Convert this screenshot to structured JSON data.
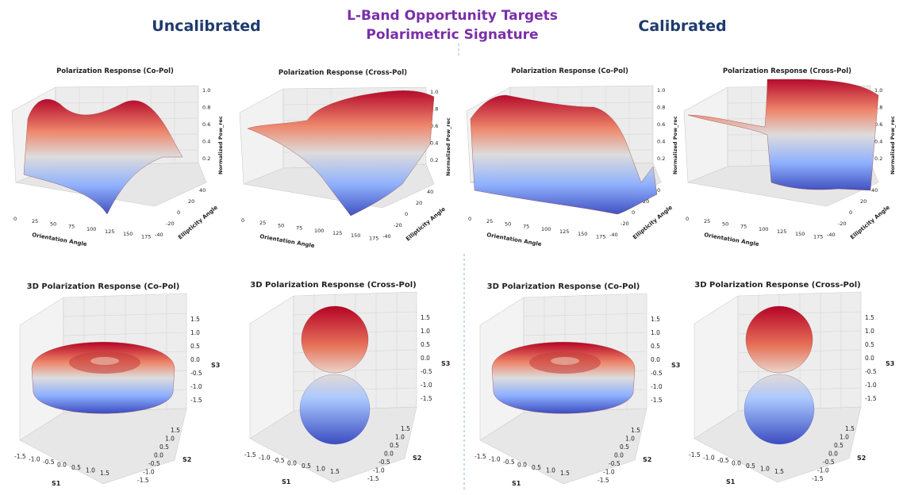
{
  "header": {
    "left": "Uncalibrated",
    "center_line1": "L-Band Opportunity Targets",
    "center_line2": "Polarimetric  Signature",
    "right": "Calibrated"
  },
  "colors": {
    "high": "#b40426",
    "mid": "#dddcdc",
    "low": "#3b4cc0",
    "header_blue": "#1f3a6e",
    "header_purple": "#7a2fa8"
  },
  "chart_data": [
    {
      "type": "surface",
      "group": "Uncalibrated",
      "title": "Polarization Response (Co-Pol)",
      "xlabel": "Orientation Angle",
      "ylabel": "Ellipticity Angle",
      "zlabel": "Normalized Pow_rec",
      "x_ticks": [
        "0",
        "25",
        "50",
        "75",
        "100",
        "125",
        "150",
        "175"
      ],
      "y_ticks": [
        "-40",
        "-20",
        "0",
        "20",
        "40"
      ],
      "z_ticks": [
        "0.2",
        "0.4",
        "0.6",
        "0.8",
        "1.0"
      ],
      "xlim": [
        0,
        180
      ],
      "ylim": [
        -45,
        45
      ],
      "zlim": [
        0,
        1
      ],
      "colormap": "coolwarm"
    },
    {
      "type": "surface",
      "group": "Uncalibrated",
      "title": "Polarization Response (Cross-Pol)",
      "xlabel": "Orientation Angle",
      "ylabel": "Ellipticity Angle",
      "zlabel": "Normalized Pow_rec",
      "x_ticks": [
        "0",
        "25",
        "50",
        "75",
        "100",
        "125",
        "150",
        "175"
      ],
      "y_ticks": [
        "-40",
        "-20",
        "0",
        "20",
        "40"
      ],
      "z_ticks": [
        "0.2",
        "0.4",
        "0.6",
        "0.8",
        "1.0"
      ],
      "xlim": [
        0,
        180
      ],
      "ylim": [
        -45,
        45
      ],
      "zlim": [
        0,
        1
      ],
      "colormap": "coolwarm"
    },
    {
      "type": "surface",
      "group": "Calibrated",
      "title": "Polarization Response (Co-Pol)",
      "xlabel": "Orientation Angle",
      "ylabel": "Ellipticity Angle",
      "zlabel": "Normalized Pow_rec",
      "x_ticks": [
        "0",
        "25",
        "50",
        "75",
        "100",
        "125",
        "150",
        "175"
      ],
      "y_ticks": [
        "-40",
        "-20",
        "0",
        "20",
        "40"
      ],
      "z_ticks": [
        "0.2",
        "0.4",
        "0.6",
        "0.8",
        "1.0"
      ],
      "xlim": [
        0,
        180
      ],
      "ylim": [
        -45,
        45
      ],
      "zlim": [
        0,
        1
      ],
      "colormap": "coolwarm"
    },
    {
      "type": "surface",
      "group": "Calibrated",
      "title": "Polarization Response (Cross-Pol)",
      "xlabel": "Orientation Angle",
      "ylabel": "Ellipticity Angle",
      "zlabel": "Normalized Pow_rec",
      "x_ticks": [
        "0",
        "25",
        "50",
        "75",
        "100",
        "125",
        "150",
        "175"
      ],
      "y_ticks": [
        "-40",
        "-20",
        "0",
        "20",
        "40"
      ],
      "z_ticks": [
        "0.2",
        "0.4",
        "0.6",
        "0.8",
        "1.0"
      ],
      "xlim": [
        0,
        180
      ],
      "ylim": [
        -45,
        45
      ],
      "zlim": [
        0,
        1
      ],
      "colormap": "coolwarm"
    },
    {
      "type": "3d-surface",
      "group": "Uncalibrated",
      "title": "3D Polarization Response (Co-Pol)",
      "xlabel": "S1",
      "ylabel": "S2",
      "zlabel": "S3",
      "x_ticks": [
        "-1.5",
        "-1.0",
        "-0.5",
        "0.0",
        "0.5",
        "1.0",
        "1.5"
      ],
      "y_ticks": [
        "-1.5",
        "-1.0",
        "-0.5",
        "0.0",
        "0.5",
        "1.0",
        "1.5"
      ],
      "z_ticks": [
        "-1.5",
        "-1.0",
        "-0.5",
        "0.0",
        "0.5",
        "1.0",
        "1.5"
      ],
      "shape": "torus",
      "colormap": "coolwarm"
    },
    {
      "type": "3d-surface",
      "group": "Uncalibrated",
      "title": "3D Polarization Response (Cross-Pol)",
      "xlabel": "S1",
      "ylabel": "S2",
      "zlabel": "S3",
      "x_ticks": [
        "-1.5",
        "-1.0",
        "-0.5",
        "0.0",
        "0.5",
        "1.0",
        "1.5"
      ],
      "y_ticks": [
        "-1.5",
        "-1.0",
        "-0.5",
        "0.0",
        "0.5",
        "1.0",
        "1.5"
      ],
      "z_ticks": [
        "-1.5",
        "-1.0",
        "-0.5",
        "0.0",
        "0.5",
        "1.0",
        "1.5"
      ],
      "shape": "double-sphere",
      "colormap": "coolwarm"
    },
    {
      "type": "3d-surface",
      "group": "Calibrated",
      "title": "3D Polarization Response (Co-Pol)",
      "xlabel": "S1",
      "ylabel": "S2",
      "zlabel": "S3",
      "x_ticks": [
        "-1.5",
        "-1.0",
        "-0.5",
        "0.0",
        "0.5",
        "1.0",
        "1.5"
      ],
      "y_ticks": [
        "-1.5",
        "-1.0",
        "-0.5",
        "0.0",
        "0.5",
        "1.0",
        "1.5"
      ],
      "z_ticks": [
        "-1.5",
        "-1.0",
        "-0.5",
        "0.0",
        "0.5",
        "1.0",
        "1.5"
      ],
      "shape": "torus",
      "colormap": "coolwarm"
    },
    {
      "type": "3d-surface",
      "group": "Calibrated",
      "title": "3D Polarization Response (Cross-Pol)",
      "xlabel": "S1",
      "ylabel": "S2",
      "zlabel": "S3",
      "x_ticks": [
        "-1.5",
        "-1.0",
        "-0.5",
        "0.0",
        "0.5",
        "1.0",
        "1.5"
      ],
      "y_ticks": [
        "-1.5",
        "-1.0",
        "-0.5",
        "0.0",
        "0.5",
        "1.0",
        "1.5"
      ],
      "z_ticks": [
        "-1.5",
        "-1.0",
        "-0.5",
        "0.0",
        "0.5",
        "1.0",
        "1.5"
      ],
      "shape": "double-sphere",
      "colormap": "coolwarm"
    }
  ]
}
